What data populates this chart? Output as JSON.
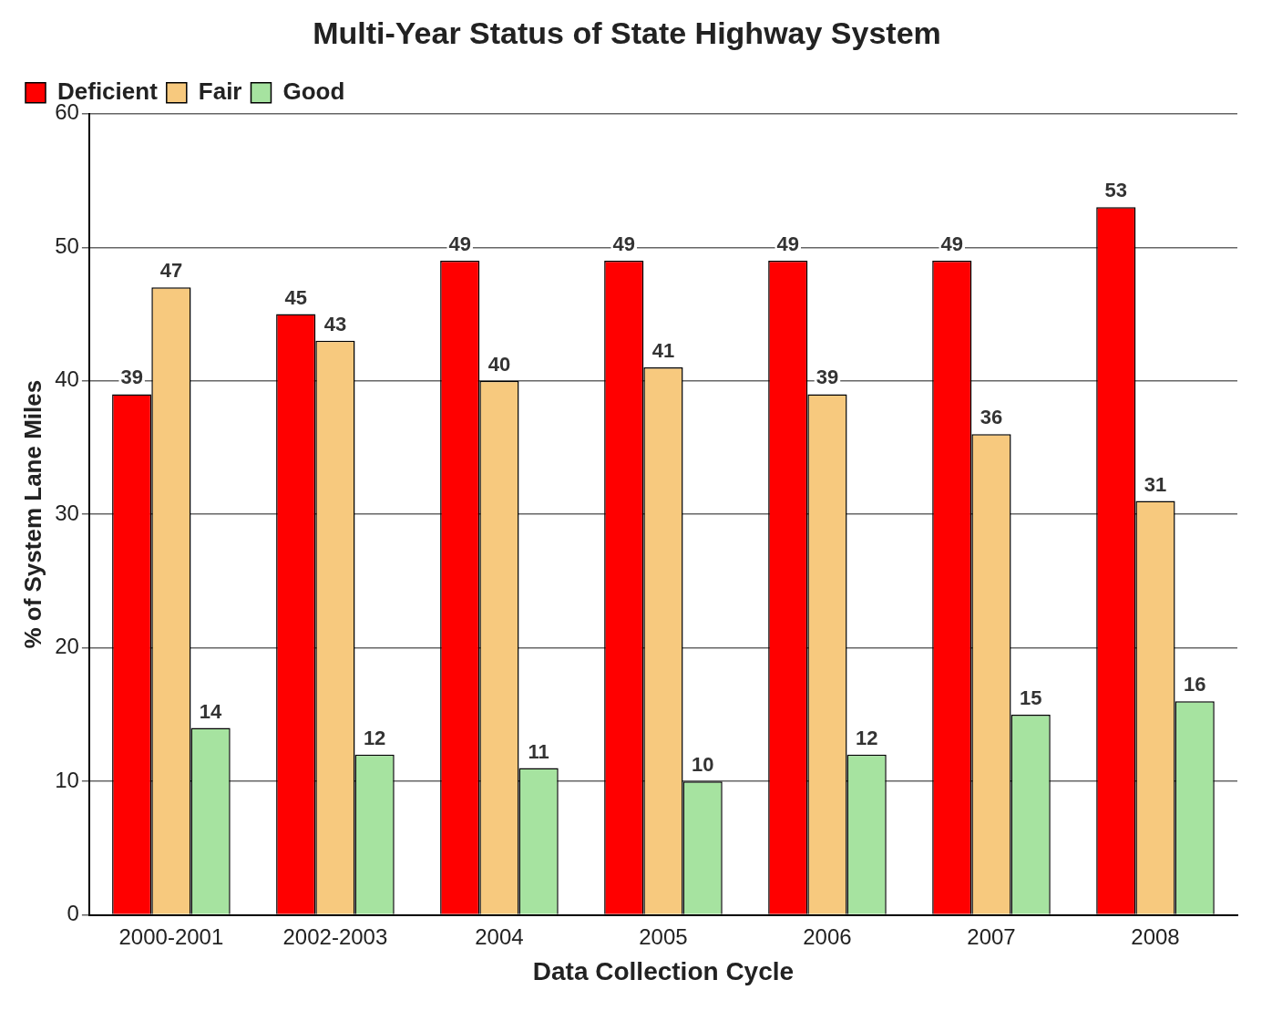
{
  "chart_data": {
    "type": "bar",
    "title": "Multi-Year Status of State Highway System",
    "xlabel": "Data Collection Cycle",
    "ylabel": "% of System Lane Miles",
    "categories": [
      "2000-2001",
      "2002-2003",
      "2004",
      "2005",
      "2006",
      "2007",
      "2008"
    ],
    "series": [
      {
        "name": "Deficient",
        "color": "#ff0000",
        "values": [
          39,
          45,
          49,
          49,
          49,
          49,
          53
        ]
      },
      {
        "name": "Fair",
        "color": "#f7c97e",
        "values": [
          47,
          43,
          40,
          41,
          39,
          36,
          31
        ]
      },
      {
        "name": "Good",
        "color": "#a6e3a0",
        "values": [
          14,
          12,
          11,
          10,
          12,
          15,
          16
        ]
      }
    ],
    "ylim": [
      0,
      60
    ],
    "yticks": [
      0,
      10,
      20,
      30,
      40,
      50,
      60
    ],
    "grid": "y",
    "legend": "top left",
    "data_labels": true
  }
}
